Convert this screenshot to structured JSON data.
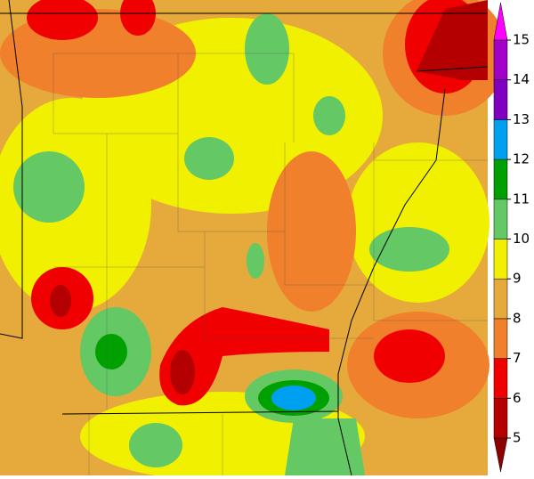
{
  "colorbar": {
    "levels": [
      5,
      6,
      7,
      8,
      9,
      10,
      11,
      12,
      13,
      14,
      15
    ],
    "colors": [
      "#8c0000",
      "#b40000",
      "#f00000",
      "#f0802c",
      "#e6aa3c",
      "#f0f000",
      "#64c864",
      "#00a000",
      "#00a0f0",
      "#8000c0",
      "#a000c8",
      "#ff00ff"
    ]
  }
}
